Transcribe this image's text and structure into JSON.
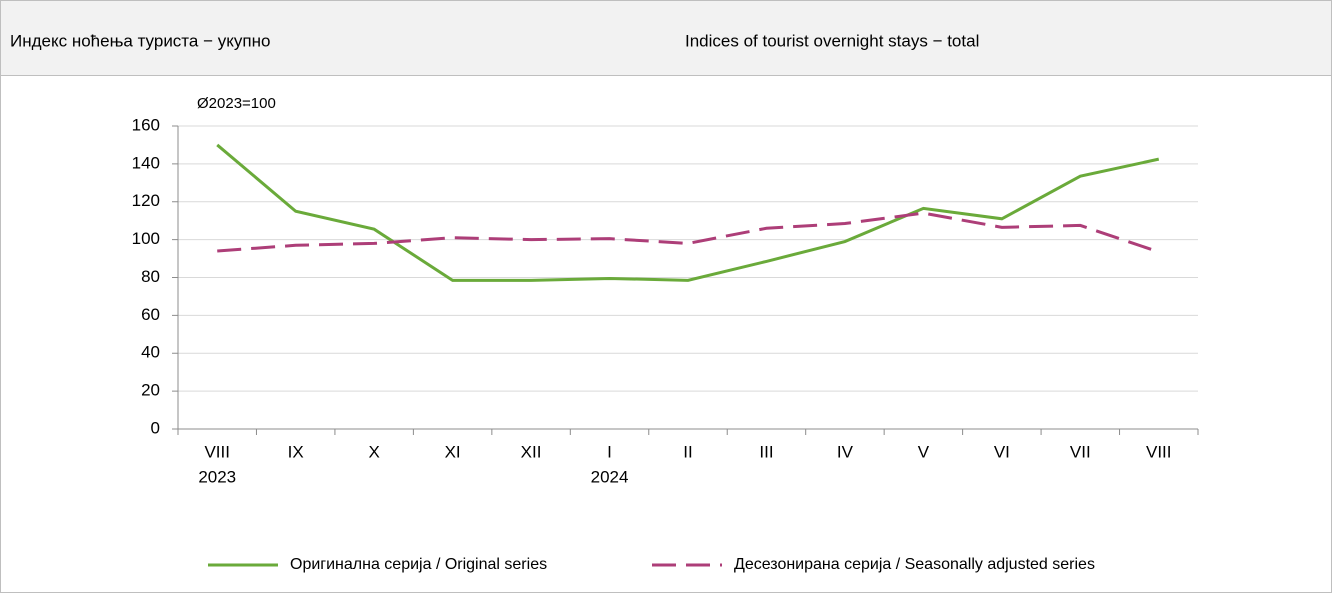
{
  "header": {
    "title_left": "Индекс ноћења туриста − укупно",
    "title_right": "Indices of tourist overnight stays − total"
  },
  "chart_data": {
    "type": "line",
    "y_axis_label": "Ø2023=100",
    "categories": [
      [
        "VIII",
        "2023"
      ],
      [
        "IX"
      ],
      [
        "X"
      ],
      [
        "XI"
      ],
      [
        "XII"
      ],
      [
        "I",
        "2024"
      ],
      [
        "II"
      ],
      [
        "III"
      ],
      [
        "IV"
      ],
      [
        "V"
      ],
      [
        "VI"
      ],
      [
        "VII"
      ],
      [
        "VIII"
      ]
    ],
    "series": [
      {
        "name": "Оригинална серија / Original series",
        "color": "#6aaa3a",
        "dash": false,
        "values": [
          150,
          115,
          105.5,
          78.5,
          78.5,
          79.5,
          78.5,
          88.5,
          99,
          116.5,
          111,
          133.5,
          142.5
        ]
      },
      {
        "name": "Десезонирана серија / Seasonally adjusted series",
        "color": "#ad3e78",
        "dash": true,
        "values": [
          94,
          97,
          98,
          101,
          100,
          100.5,
          98,
          106,
          108.5,
          114,
          106.5,
          107.5,
          93.5
        ]
      }
    ],
    "ylim": [
      0,
      160
    ],
    "yticks": [
      0,
      20,
      40,
      60,
      80,
      100,
      120,
      140,
      160
    ],
    "grid": true,
    "legend": "bottom"
  }
}
